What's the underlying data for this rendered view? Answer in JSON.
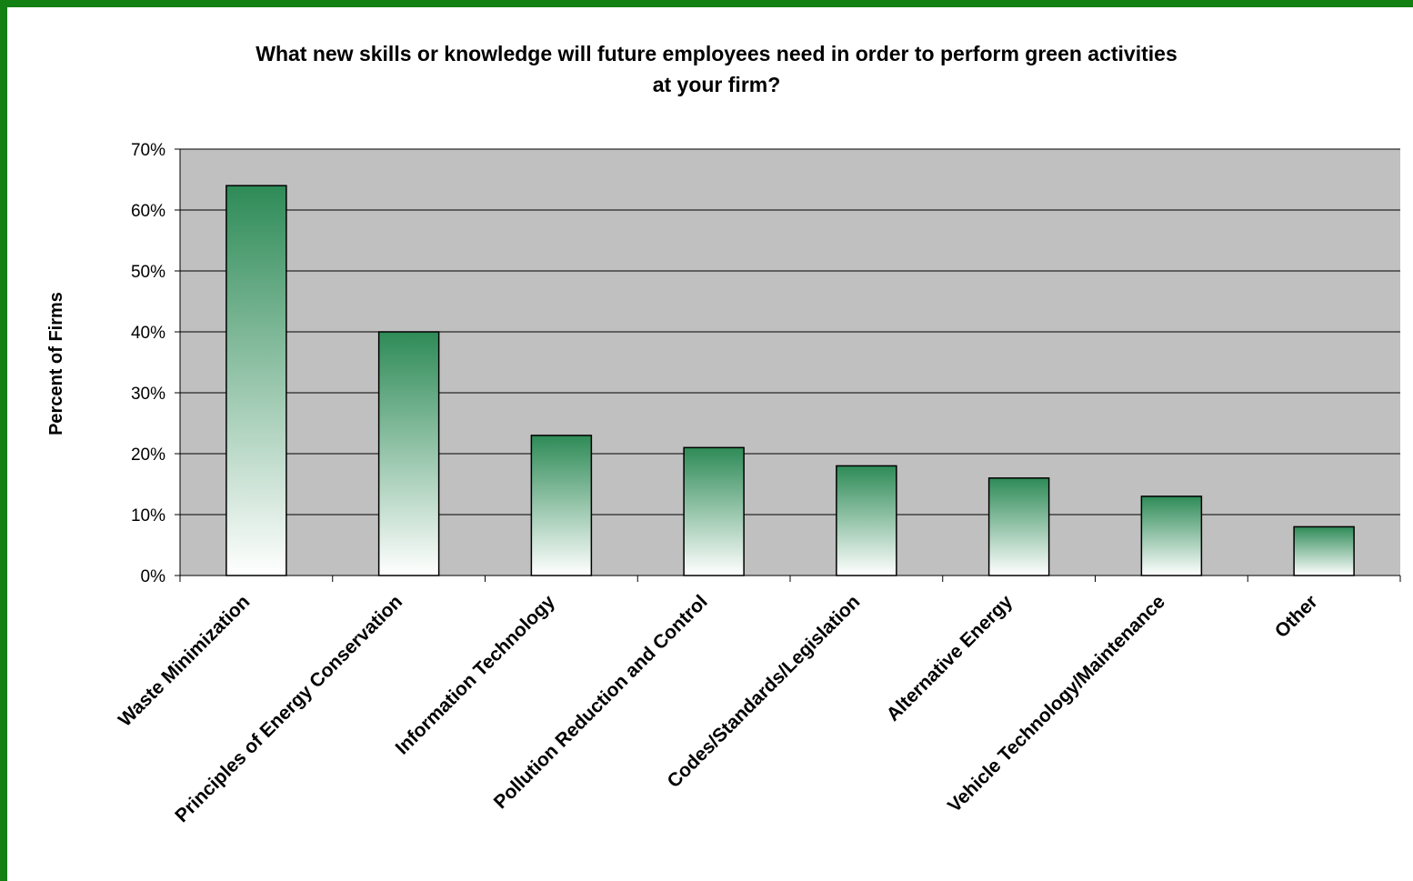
{
  "colors": {
    "frame_border": "#138013",
    "plot_background": "#c0c0c0",
    "gridline": "#000000",
    "bar_top": "#2e8b57",
    "bar_bottom": "#ffffff",
    "bar_outline": "#000000"
  },
  "chart_data": {
    "type": "bar",
    "title_lines": [
      "What new skills or knowledge will future employees need in order to perform green activities",
      "at your firm?"
    ],
    "xlabel": "",
    "ylabel": "Percent of Firms",
    "ylim": [
      0,
      70
    ],
    "yticks": [
      0,
      10,
      20,
      30,
      40,
      50,
      60,
      70
    ],
    "ytick_labels": [
      "0%",
      "10%",
      "20%",
      "30%",
      "40%",
      "50%",
      "60%",
      "70%"
    ],
    "grid": true,
    "legend": "none",
    "categories": [
      "Waste Minimization",
      "Principles of Energy Conservation",
      "Information Technology",
      "Pollution Reduction and Control",
      "Codes/Standards/Legislation",
      "Alternative Energy",
      "Vehicle Technology/Maintenance",
      "Other"
    ],
    "values": [
      64,
      40,
      23,
      21,
      18,
      16,
      13,
      8
    ]
  }
}
